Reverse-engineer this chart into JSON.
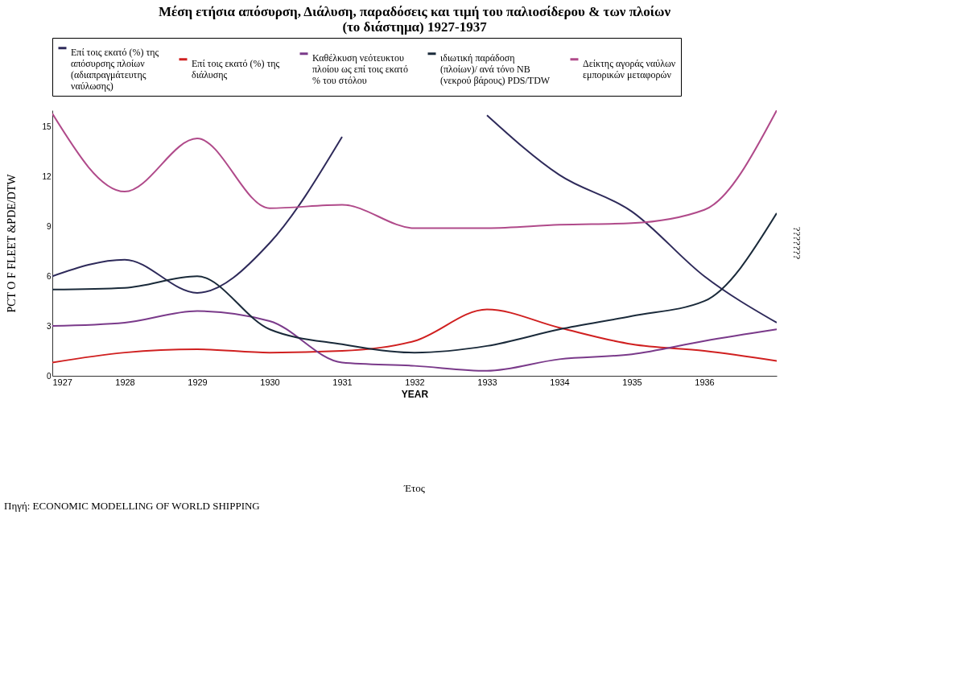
{
  "chart_data": {
    "type": "line",
    "title": "Μέση ετήσια απόσυρση, Διάλυση, παραδόσεις και τιμή του παλιοσίδερου & των πλοίων (το διάστημα) 1927-1937",
    "xlabel": "YEAR",
    "ylabel": "PCT O F FLEET &PDE/DTW",
    "y2label": "???????",
    "annotations": [
      "Έτος",
      "Πηγή: ECONOMIC MODELLING OF WORLD SHIPPING"
    ],
    "x": [
      1927,
      1928,
      1929,
      1930,
      1931,
      1932,
      1933,
      1934,
      1935,
      1936,
      1937
    ],
    "series": [
      {
        "name": "Επί τοις εκατό (%) της απόσυρσης πλοίων (αδιαπραγμάτευτης ναύλωσης)",
        "color": "#2e2a5a",
        "values": [
          6.0,
          7.0,
          5.0,
          8.0,
          14.4,
          null,
          15.7,
          12.1,
          9.9,
          6.0,
          3.2
        ]
      },
      {
        "name": "Επί τοις εκατό (%) της διάλυσης",
        "color": "#d02020",
        "values": [
          0.8,
          1.4,
          1.6,
          1.4,
          1.5,
          2.1,
          4.0,
          2.9,
          1.9,
          1.5,
          0.9
        ]
      },
      {
        "name": "Καθέλκυση νεότευκτου πλοίου ως επί τοις εκατό % του στόλου",
        "color": "#7a3a8a",
        "values": [
          3.0,
          3.2,
          3.9,
          3.3,
          0.8,
          0.6,
          0.3,
          1.0,
          1.3,
          2.1,
          2.8
        ]
      },
      {
        "name": "ιδιωτική παράδοση (πλοίων)/ ανά τόνο NB (νεκρού βάρους) PDS/TDW",
        "color": "#1a2a3a",
        "values": [
          5.2,
          5.3,
          6.0,
          2.8,
          1.9,
          1.4,
          1.8,
          2.8,
          3.6,
          4.5,
          9.8
        ]
      },
      {
        "name": "Δείκτης αγοράς ναύλων εμπορικών μεταφορών",
        "color": "#b04a8a",
        "values": [
          15.8,
          11.1,
          14.3,
          10.1,
          10.3,
          8.9,
          8.9,
          9.1,
          9.2,
          10.0,
          16.0
        ]
      }
    ],
    "xlim": [
      1927,
      1937
    ],
    "xticks": [
      1927,
      1928,
      1929,
      1930,
      1931,
      1932,
      1933,
      1934,
      1935,
      1936
    ],
    "ylim": [
      0,
      16
    ],
    "yticks": [
      0,
      3,
      6,
      9,
      12,
      15
    ],
    "grid": false,
    "legend": "top"
  }
}
